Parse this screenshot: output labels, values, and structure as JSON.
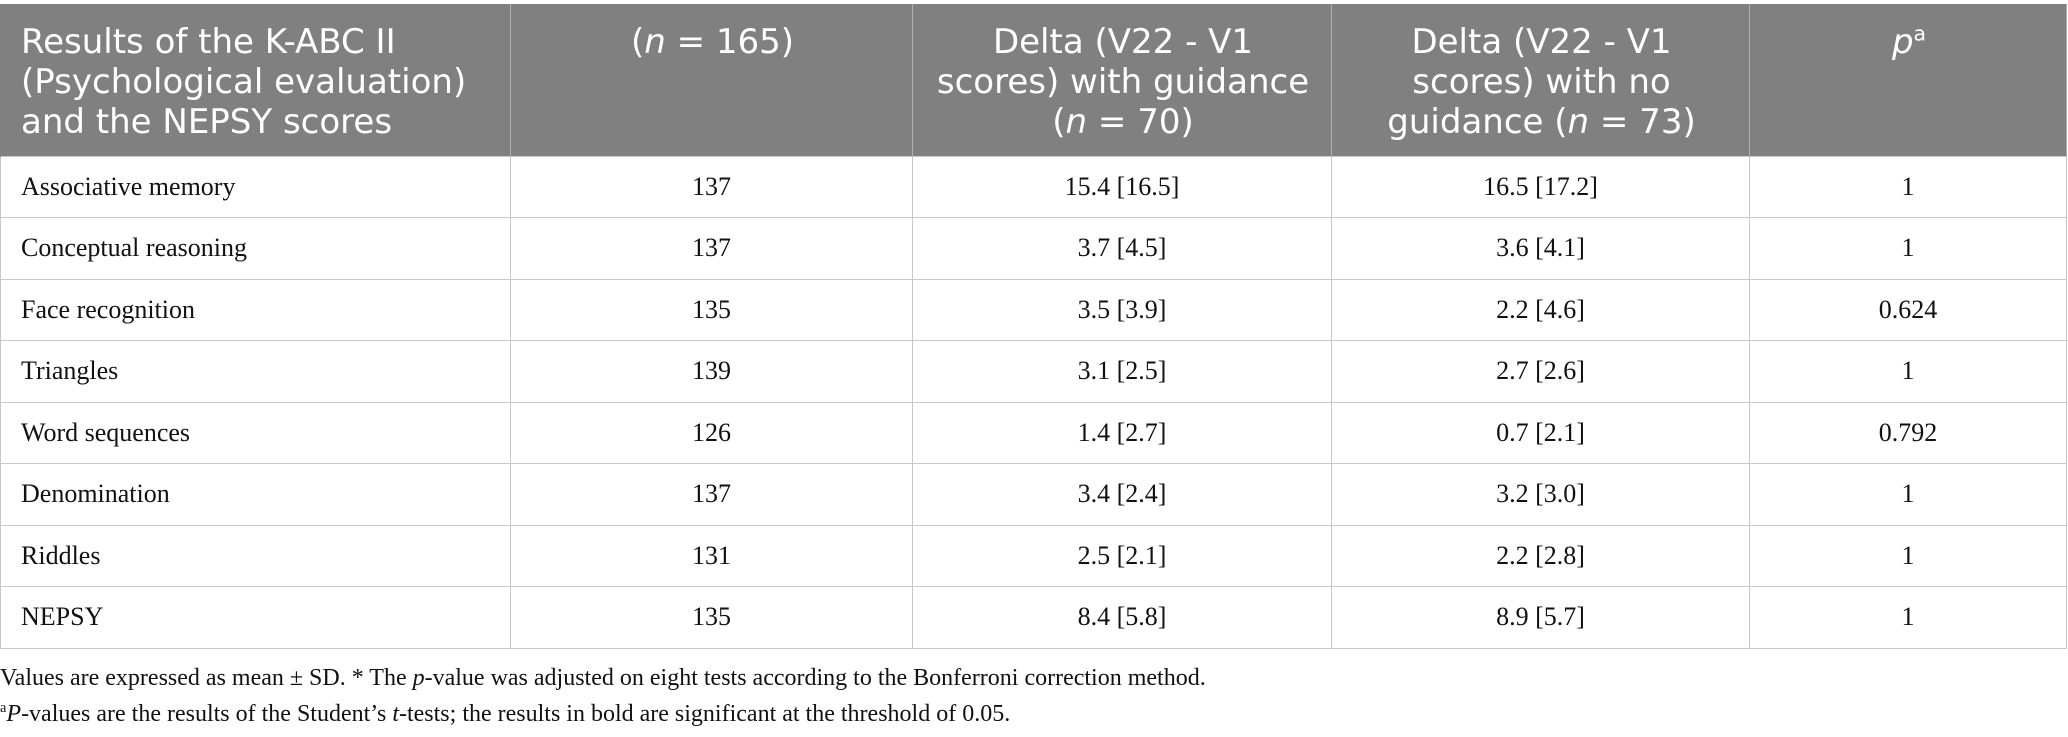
{
  "table": {
    "headers": {
      "col1": "Results of the K-ABC II (Psychological evaluation) and the NEPSY scores",
      "col2_open": "(",
      "col2_n": "n",
      "col2_close": " = 165)",
      "col3_text": "Delta (V22 - V1 scores) with guidance (",
      "col3_n": "n",
      "col3_close": " = 70)",
      "col4_text": "Delta (V22 - V1 scores) with no guidance (",
      "col4_n": "n",
      "col4_close": " = 73)",
      "col5_p": "p",
      "col5_sup": "a"
    },
    "rows": [
      {
        "label": "Associative memory",
        "n": "137",
        "with_guidance": "15.4 [16.5]",
        "no_guidance": "16.5 [17.2]",
        "p": "1"
      },
      {
        "label": "Conceptual reasoning",
        "n": "137",
        "with_guidance": "3.7 [4.5]",
        "no_guidance": "3.6 [4.1]",
        "p": "1"
      },
      {
        "label": "Face recognition",
        "n": "135",
        "with_guidance": "3.5 [3.9]",
        "no_guidance": "2.2 [4.6]",
        "p": "0.624"
      },
      {
        "label": "Triangles",
        "n": "139",
        "with_guidance": "3.1 [2.5]",
        "no_guidance": "2.7 [2.6]",
        "p": "1"
      },
      {
        "label": "Word sequences",
        "n": "126",
        "with_guidance": "1.4 [2.7]",
        "no_guidance": "0.7 [2.1]",
        "p": "0.792"
      },
      {
        "label": "Denomination",
        "n": "137",
        "with_guidance": "3.4 [2.4]",
        "no_guidance": "3.2 [3.0]",
        "p": "1"
      },
      {
        "label": "Riddles",
        "n": "131",
        "with_guidance": "2.5 [2.1]",
        "no_guidance": "2.2 [2.8]",
        "p": "1"
      },
      {
        "label": "NEPSY",
        "n": "135",
        "with_guidance": "8.4 [5.8]",
        "no_guidance": "8.9 [5.7]",
        "p": "1"
      }
    ]
  },
  "footnotes": {
    "note1_a": "Values are expressed as mean ± SD. * The ",
    "note1_p": "p",
    "note1_b": "-value was adjusted on eight tests according to the Bonferroni correction method.",
    "note2_sup": "a",
    "note2_P": "P",
    "note2_a": "-values are the results of the Student’s ",
    "note2_t": "t",
    "note2_b": "-tests; the results in bold are significant at the threshold of 0.05."
  },
  "colors": {
    "header_bg": "#808080",
    "header_text": "#ffffff",
    "grid": "#c8c8c8"
  }
}
